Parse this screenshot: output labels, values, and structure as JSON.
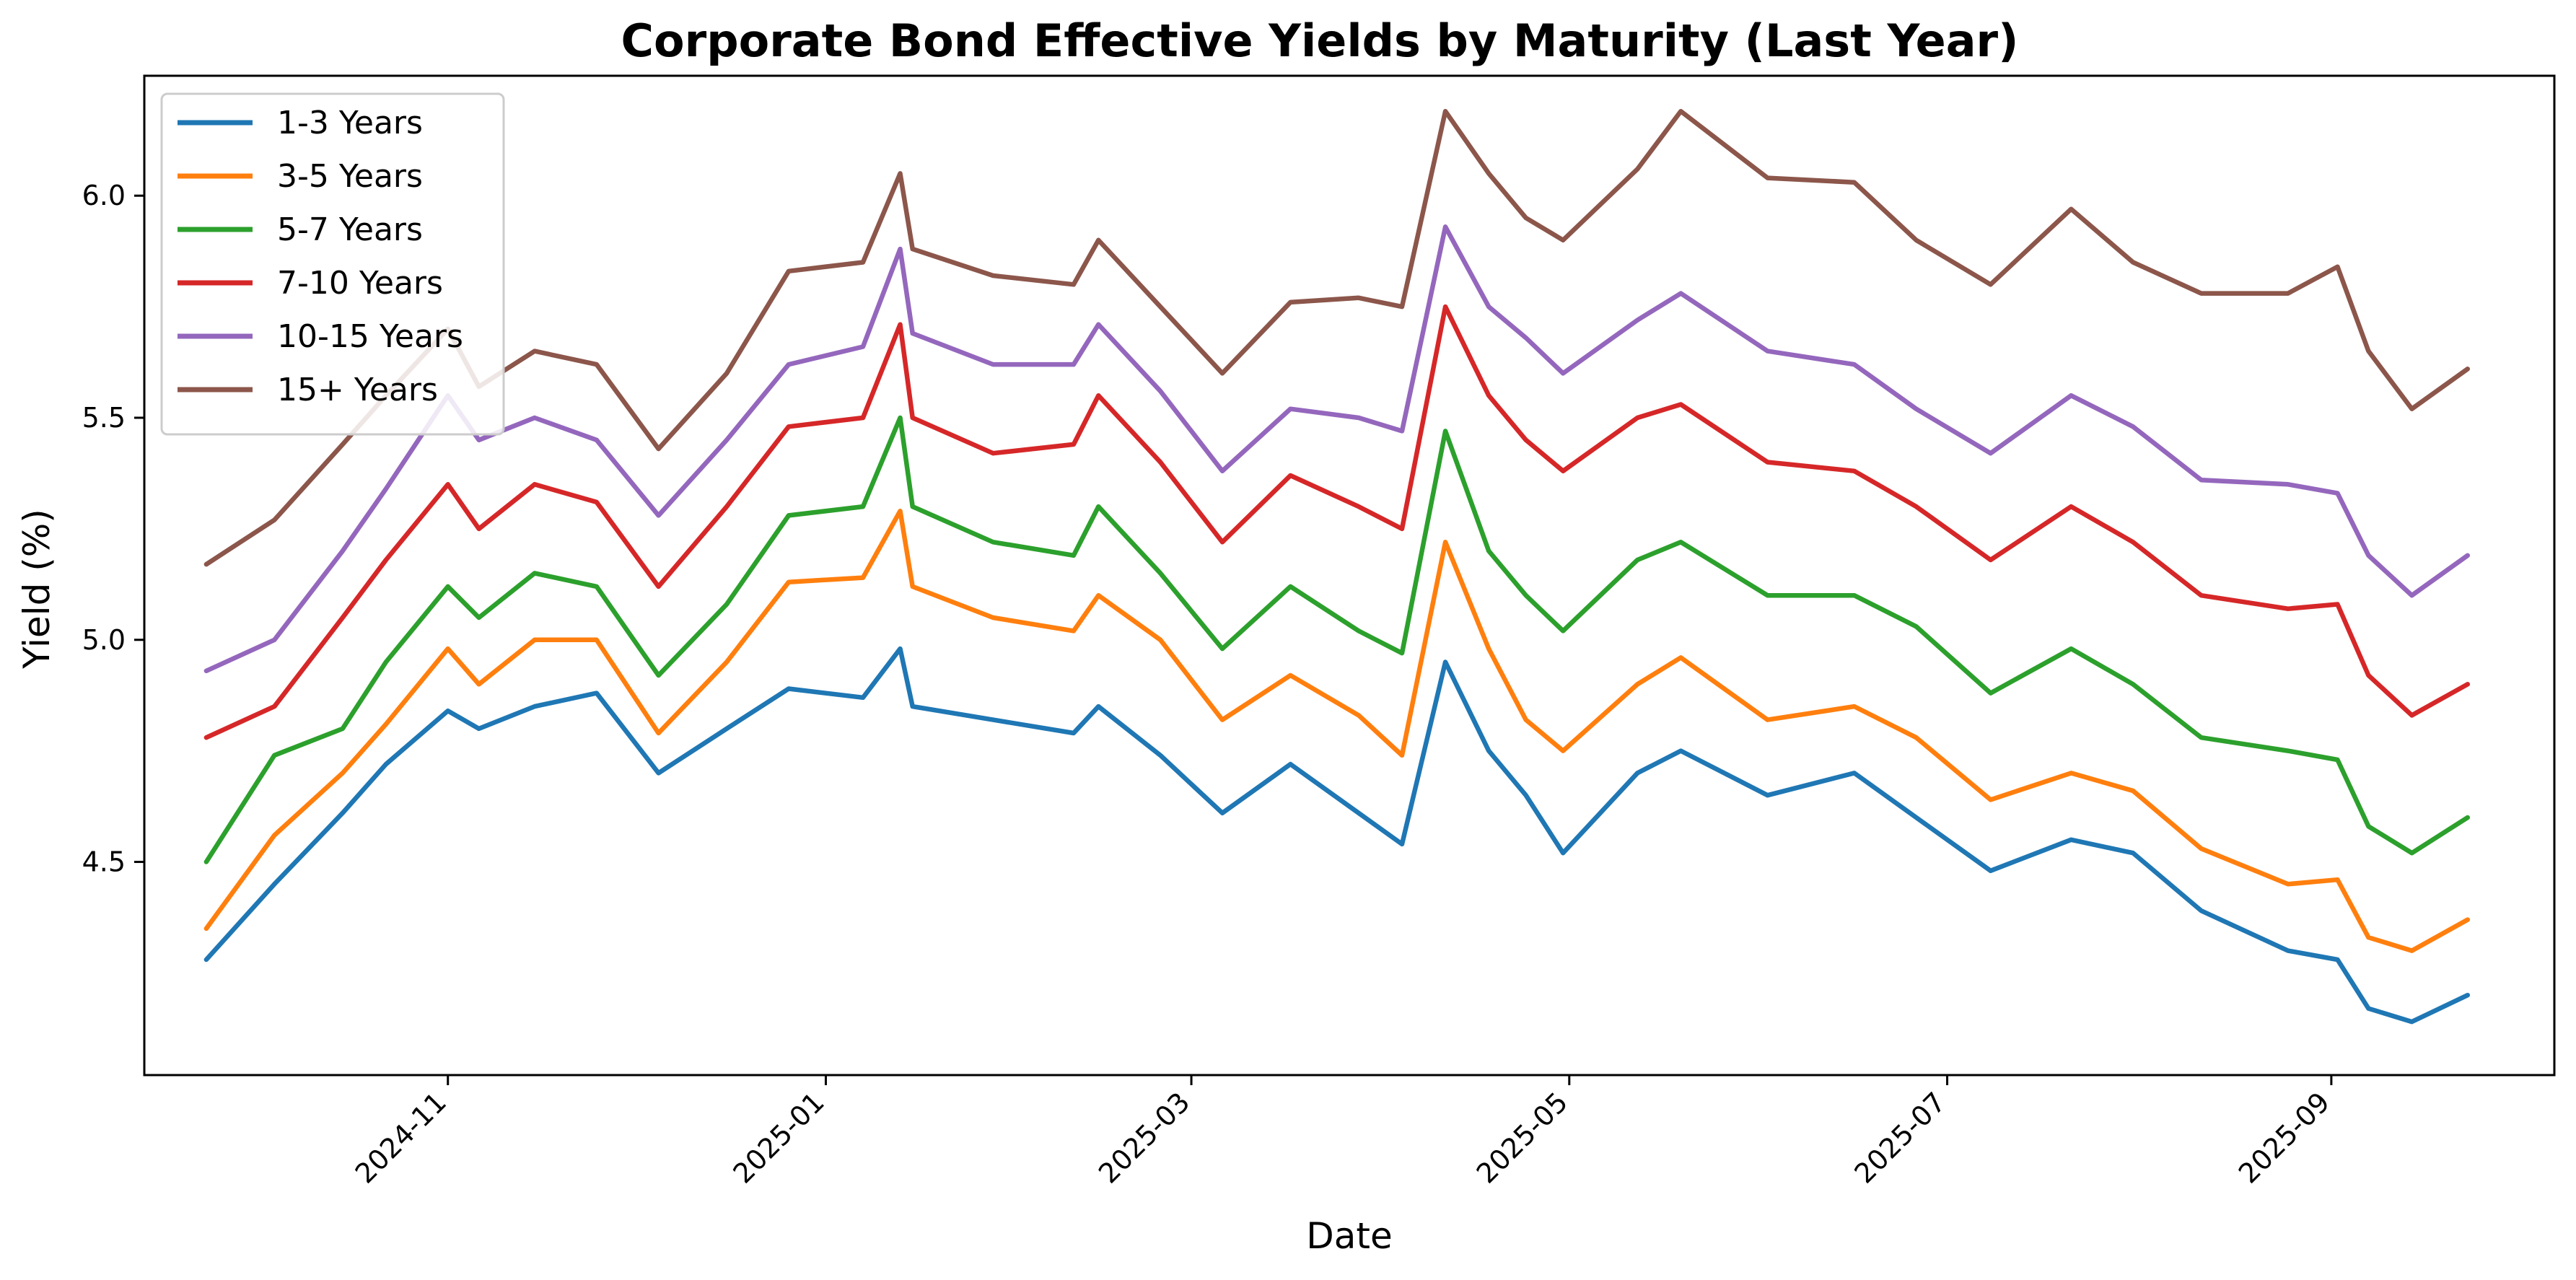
{
  "chart_data": {
    "type": "line",
    "title": "Corporate Bond Effective Yields by Maturity (Last Year)",
    "xlabel": "Date",
    "ylabel": "Yield (%)",
    "x_type": "date",
    "xlim": [
      "2024-09-13",
      "2025-10-07"
    ],
    "ylim": [
      4.02,
      6.27
    ],
    "x_ticks": [
      "2024-11-01",
      "2025-01-01",
      "2025-03-01",
      "2025-05-01",
      "2025-07-01",
      "2025-09-01"
    ],
    "x_tick_labels": [
      "2024-11",
      "2025-01",
      "2025-03",
      "2025-05",
      "2025-07",
      "2025-09"
    ],
    "y_ticks": [
      4.5,
      5.0,
      5.5,
      6.0
    ],
    "y_tick_labels": [
      "4.5",
      "5.0",
      "5.5",
      "6.0"
    ],
    "grid": false,
    "legend_position": "upper-left",
    "x": [
      "2024-09-23",
      "2024-10-04",
      "2024-10-15",
      "2024-10-22",
      "2024-11-01",
      "2024-11-06",
      "2024-11-15",
      "2024-11-25",
      "2024-12-05",
      "2024-12-16",
      "2024-12-26",
      "2025-01-07",
      "2025-01-13",
      "2025-01-15",
      "2025-01-28",
      "2025-02-10",
      "2025-02-14",
      "2025-02-24",
      "2025-03-06",
      "2025-03-17",
      "2025-03-28",
      "2025-04-04",
      "2025-04-11",
      "2025-04-18",
      "2025-04-24",
      "2025-04-30",
      "2025-05-12",
      "2025-05-19",
      "2025-06-02",
      "2025-06-16",
      "2025-06-26",
      "2025-07-08",
      "2025-07-21",
      "2025-07-31",
      "2025-08-11",
      "2025-08-25",
      "2025-09-02",
      "2025-09-07",
      "2025-09-14",
      "2025-09-23"
    ],
    "series": [
      {
        "name": "1-3 Years",
        "color": "#1f77b4",
        "values": [
          4.28,
          4.45,
          4.61,
          4.72,
          4.84,
          4.8,
          4.85,
          4.88,
          4.7,
          4.8,
          4.89,
          4.87,
          4.98,
          4.85,
          4.82,
          4.79,
          4.85,
          4.74,
          4.61,
          4.72,
          4.61,
          4.54,
          4.95,
          4.75,
          4.65,
          4.52,
          4.7,
          4.75,
          4.65,
          4.7,
          4.6,
          4.48,
          4.55,
          4.52,
          4.39,
          4.3,
          4.28,
          4.17,
          4.14,
          4.2
        ]
      },
      {
        "name": "3-5 Years",
        "color": "#ff7f0e",
        "values": [
          4.35,
          4.56,
          4.7,
          4.81,
          4.98,
          4.9,
          5.0,
          5.0,
          4.79,
          4.95,
          5.13,
          5.14,
          5.29,
          5.12,
          5.05,
          5.02,
          5.1,
          5.0,
          4.82,
          4.92,
          4.83,
          4.74,
          5.22,
          4.98,
          4.82,
          4.75,
          4.9,
          4.96,
          4.82,
          4.85,
          4.78,
          4.64,
          4.7,
          4.66,
          4.53,
          4.45,
          4.46,
          4.33,
          4.3,
          4.37
        ]
      },
      {
        "name": "5-7 Years",
        "color": "#2ca02c",
        "values": [
          4.5,
          4.74,
          4.8,
          4.95,
          5.12,
          5.05,
          5.15,
          5.12,
          4.92,
          5.08,
          5.28,
          5.3,
          5.5,
          5.3,
          5.22,
          5.19,
          5.3,
          5.15,
          4.98,
          5.12,
          5.02,
          4.97,
          5.47,
          5.2,
          5.1,
          5.02,
          5.18,
          5.22,
          5.1,
          5.1,
          5.03,
          4.88,
          4.98,
          4.9,
          4.78,
          4.75,
          4.73,
          4.58,
          4.52,
          4.6
        ]
      },
      {
        "name": "7-10 Years",
        "color": "#d62728",
        "values": [
          4.78,
          4.85,
          5.05,
          5.18,
          5.35,
          5.25,
          5.35,
          5.31,
          5.12,
          5.3,
          5.48,
          5.5,
          5.71,
          5.5,
          5.42,
          5.44,
          5.55,
          5.4,
          5.22,
          5.37,
          5.3,
          5.25,
          5.75,
          5.55,
          5.45,
          5.38,
          5.5,
          5.53,
          5.4,
          5.38,
          5.3,
          5.18,
          5.3,
          5.22,
          5.1,
          5.07,
          5.08,
          4.92,
          4.83,
          4.9
        ]
      },
      {
        "name": "10-15 Years",
        "color": "#9467bd",
        "values": [
          4.93,
          5.0,
          5.2,
          5.34,
          5.55,
          5.45,
          5.5,
          5.45,
          5.28,
          5.45,
          5.62,
          5.66,
          5.88,
          5.69,
          5.62,
          5.62,
          5.71,
          5.56,
          5.38,
          5.52,
          5.5,
          5.47,
          5.93,
          5.75,
          5.68,
          5.6,
          5.72,
          5.78,
          5.65,
          5.62,
          5.52,
          5.42,
          5.55,
          5.48,
          5.36,
          5.35,
          5.33,
          5.19,
          5.1,
          5.19
        ]
      },
      {
        "name": "15+ Years",
        "color": "#8c564b",
        "values": [
          5.17,
          5.27,
          5.44,
          5.55,
          5.7,
          5.57,
          5.65,
          5.62,
          5.43,
          5.6,
          5.83,
          5.85,
          6.05,
          5.88,
          5.82,
          5.8,
          5.9,
          5.75,
          5.6,
          5.76,
          5.77,
          5.75,
          6.19,
          6.05,
          5.95,
          5.9,
          6.06,
          6.19,
          6.04,
          6.03,
          5.9,
          5.8,
          5.97,
          5.85,
          5.78,
          5.78,
          5.84,
          5.65,
          5.52,
          5.61
        ]
      }
    ]
  }
}
